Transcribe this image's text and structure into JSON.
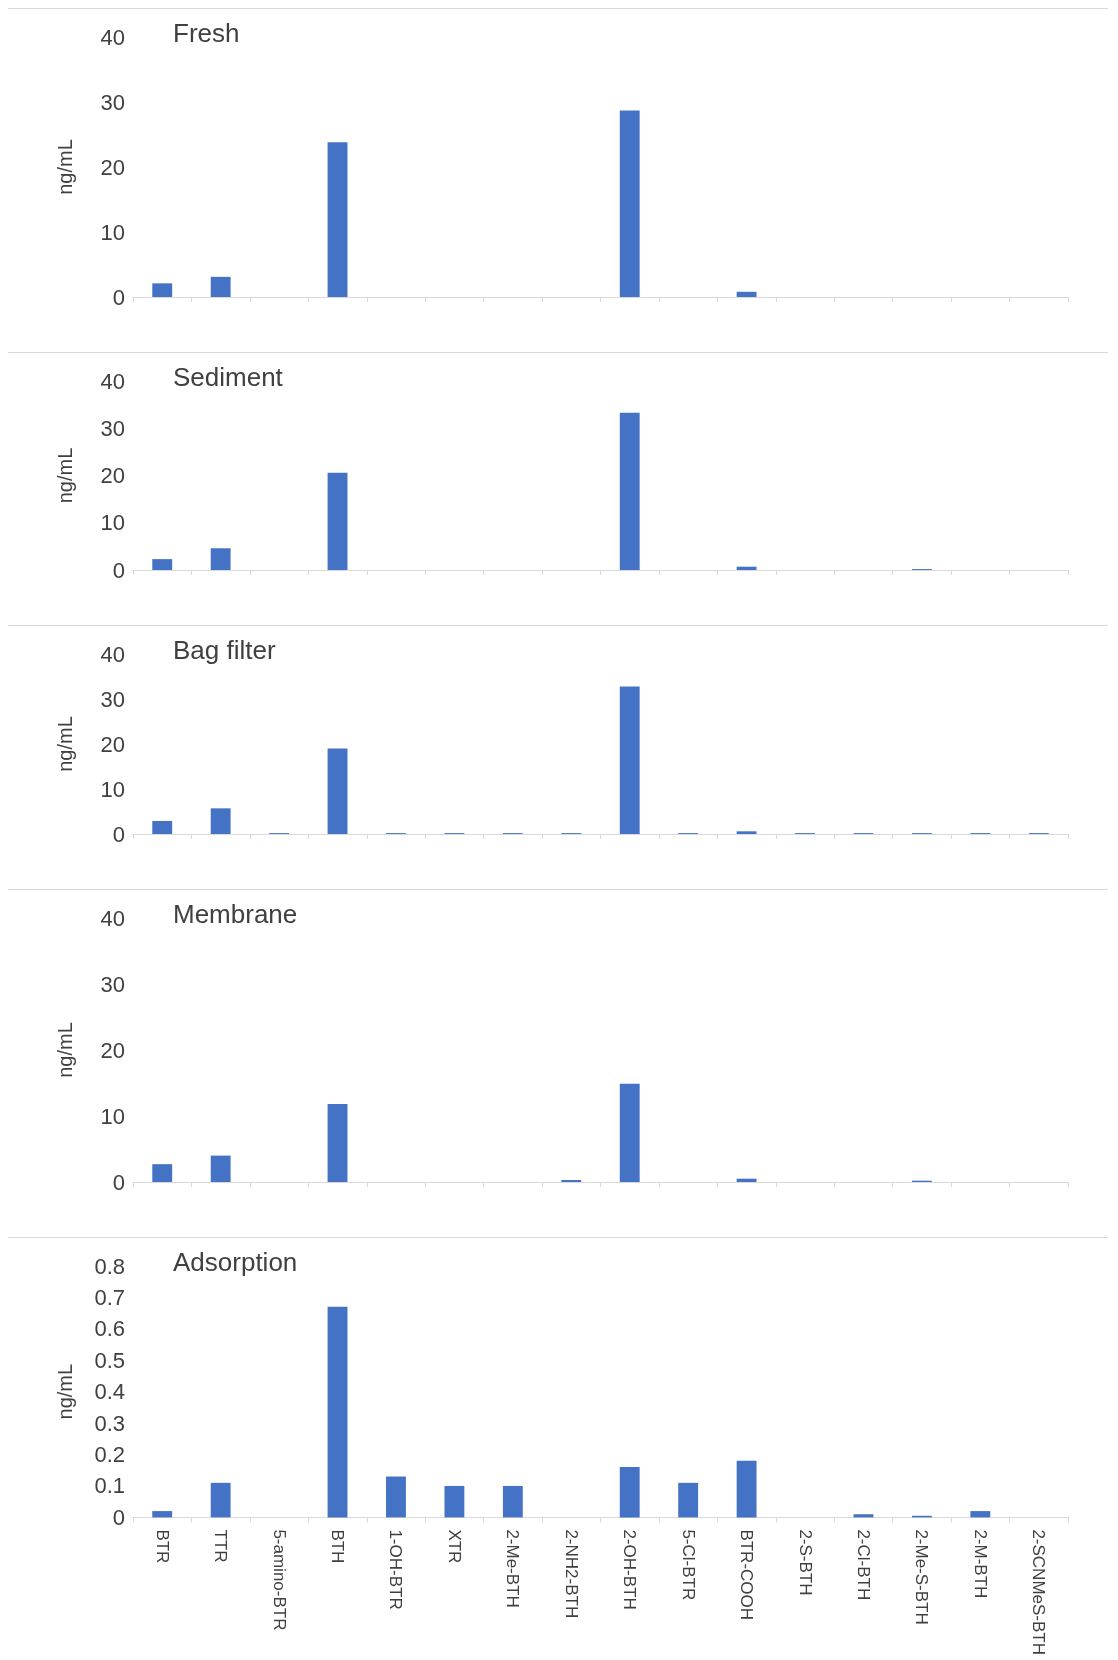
{
  "chart_data": [
    {
      "type": "bar",
      "title": "Fresh",
      "ylabel": "ng/mL",
      "categories": [
        null,
        null,
        null,
        null,
        null,
        null,
        null,
        null,
        null,
        null,
        null,
        null,
        null,
        null,
        null,
        null
      ],
      "series": [
        {
          "color": "#4472c4",
          "values": [
            2.1,
            3.1,
            0,
            23.8,
            0,
            0,
            0,
            0,
            28.7,
            0,
            0.8,
            0,
            0,
            0,
            0,
            0
          ]
        }
      ],
      "ylim": [
        0,
        40
      ],
      "yticks": [
        0,
        10,
        20,
        30,
        40
      ],
      "grid": false,
      "tick_labels": "y"
    },
    {
      "type": "bar",
      "title": "Sediment",
      "ylabel": "ng/mL",
      "categories": [
        null,
        null,
        null,
        null,
        null,
        null,
        null,
        null,
        null,
        null,
        null,
        null,
        null,
        null,
        null,
        null
      ],
      "series": [
        {
          "color": "#4472c4",
          "values": [
            2.3,
            4.6,
            0,
            20.6,
            0,
            0,
            0,
            0,
            33.3,
            0,
            0.7,
            0,
            0,
            0.2,
            0,
            0
          ]
        }
      ],
      "ylim": [
        0,
        40
      ],
      "yticks": [
        0,
        10,
        20,
        30,
        40
      ],
      "grid": false,
      "tick_labels": "y"
    },
    {
      "type": "bar",
      "title": "Bag filter",
      "ylabel": "ng/mL",
      "categories": [
        null,
        null,
        null,
        null,
        null,
        null,
        null,
        null,
        null,
        null,
        null,
        null,
        null,
        null,
        null,
        null
      ],
      "series": [
        {
          "color": "#4472c4",
          "values": [
            2.9,
            5.7,
            0.2,
            19.0,
            0.2,
            0.2,
            0.2,
            0.2,
            32.8,
            0.2,
            0.6,
            0.2,
            0.2,
            0.2,
            0.2,
            0.2
          ]
        }
      ],
      "ylim": [
        0,
        40
      ],
      "yticks": [
        0,
        10,
        20,
        30,
        40
      ],
      "grid": false,
      "tick_labels": "y"
    },
    {
      "type": "bar",
      "title": "Membrane",
      "ylabel": "ng/mL",
      "categories": [
        null,
        null,
        null,
        null,
        null,
        null,
        null,
        null,
        null,
        null,
        null,
        null,
        null,
        null,
        null,
        null
      ],
      "series": [
        {
          "color": "#4472c4",
          "values": [
            2.7,
            4.0,
            0,
            11.8,
            0,
            0,
            0,
            0.3,
            14.9,
            0,
            0.5,
            0,
            0,
            0.2,
            0,
            0
          ]
        }
      ],
      "ylim": [
        0,
        40
      ],
      "yticks": [
        0,
        10,
        20,
        30,
        40
      ],
      "grid": false,
      "tick_labels": "y"
    },
    {
      "type": "bar",
      "title": "Adsorption",
      "ylabel": "ng/mL",
      "categories": [
        "BTR",
        "TTR",
        "5-amino-BTR",
        "BTH",
        "1-OH-BTR",
        "XTR",
        "2-Me-BTH",
        "2-NH2-BTH",
        "2-OH-BTH",
        "5-Cl-BTR",
        "BTR-COOH",
        "2-S-BTH",
        "2-Cl-BTH",
        "2-Me-S-BTH",
        "2-M-BTH",
        "2-SCNMeS-BTH"
      ],
      "series": [
        {
          "color": "#4472c4",
          "values": [
            0.02,
            0.11,
            0,
            0.67,
            0.13,
            0.1,
            0.1,
            0,
            0.16,
            0.11,
            0.18,
            0,
            0.01,
            0.005,
            0.02,
            0
          ]
        }
      ],
      "ylim": [
        0,
        0.8
      ],
      "yticks": [
        0,
        0.1,
        0.2,
        0.3,
        0.4,
        0.5,
        0.6,
        0.7,
        0.8
      ],
      "grid": false
    }
  ]
}
